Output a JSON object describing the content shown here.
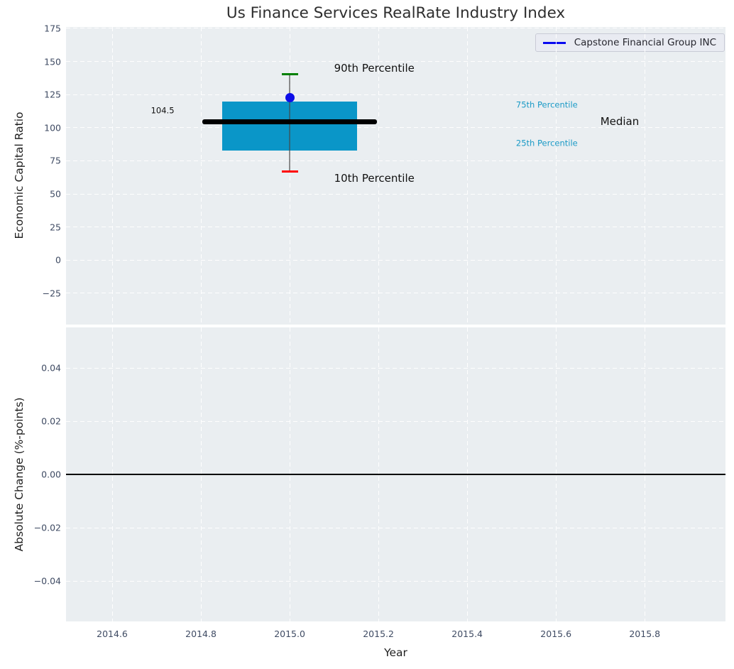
{
  "figure": {
    "title": "Us Finance Services RealRate Industry Index",
    "background": "#ffffff",
    "axes_background": "#eaeef1",
    "grid_color": "#ffffff",
    "tick_color": "#3f4b63",
    "label_color": "#1f1f1f"
  },
  "legend": {
    "label": "Capstone Financial Group INC",
    "line_color": "#0a0af0",
    "position": "upper right"
  },
  "chart_data": [
    {
      "type": "boxplot",
      "title": "Us Finance Services RealRate Industry Index",
      "xlabel": "Year",
      "ylabel": "Economic Capital Ratio",
      "xlim": [
        2014.496,
        2015.982
      ],
      "ylim": [
        -48.6,
        176.07
      ],
      "xticks": [
        2014.6,
        2014.8,
        2015.0,
        2015.2,
        2015.4,
        2015.6,
        2015.8
      ],
      "xticklabels": [
        "2014.6",
        "2014.8",
        "2015.0",
        "2015.2",
        "2015.4",
        "2015.6",
        "2015.8"
      ],
      "yticks": [
        175,
        150,
        125,
        100,
        75,
        50,
        25,
        0,
        -25
      ],
      "yticklabels": [
        "175",
        "150",
        "125",
        "100",
        "75",
        "50",
        "25",
        "0",
        "−25"
      ],
      "grid": "white-dashed",
      "legend_position": "upper right",
      "box": {
        "year": 2015.0,
        "p10": 67,
        "p25": 83,
        "median": 104.5,
        "p75": 120,
        "p90": 140.5,
        "box_halfwidth_years": 0.152,
        "median_halfwidth_years": 0.197,
        "cap_halfwidth_years": 0.0184,
        "box_color": "#0a96c8",
        "median_color": "#000000",
        "median_thickness_px": 7,
        "whisker_color": "rgba(70,70,70,0.6)",
        "p90_cap_color": "#008000",
        "p10_cap_color": "#ff0000"
      },
      "series": [
        {
          "name": "Capstone Financial Group INC",
          "marker": "circle",
          "color": "#0d0de8",
          "points": [
            {
              "x": 2015.0,
              "y": 122.5
            }
          ]
        }
      ],
      "annotations": [
        {
          "text": "90th Percentile",
          "x": 2015.1,
          "y": 145,
          "color": "#111111",
          "size": 15,
          "align": "left"
        },
        {
          "text": "10th Percentile",
          "x": 2015.1,
          "y": 62,
          "color": "#111111",
          "size": 15,
          "align": "left"
        },
        {
          "text": "104.5",
          "x": 2014.74,
          "y": 113,
          "color": "#111111",
          "size": 11.5,
          "align": "right"
        },
        {
          "text": "75th Percentile",
          "x": 2015.51,
          "y": 117,
          "color": "#1b9ac6",
          "size": 11.5,
          "align": "left"
        },
        {
          "text": "25th Percentile",
          "x": 2015.51,
          "y": 88,
          "color": "#1b9ac6",
          "size": 11.5,
          "align": "left"
        },
        {
          "text": "Median",
          "x": 2015.7,
          "y": 104.5,
          "color": "#111111",
          "size": 15,
          "align": "left"
        }
      ]
    },
    {
      "type": "line",
      "xlabel": "Year",
      "ylabel": "Absolute Change (%-points)",
      "xlim": [
        2014.496,
        2015.982
      ],
      "ylim": [
        -0.0552,
        0.0552
      ],
      "xticks": [
        2014.6,
        2014.8,
        2015.0,
        2015.2,
        2015.4,
        2015.6,
        2015.8
      ],
      "xticklabels": [
        "2014.6",
        "2014.8",
        "2015.0",
        "2015.2",
        "2015.4",
        "2015.6",
        "2015.8"
      ],
      "yticks": [
        0.04,
        0.02,
        0.0,
        -0.02,
        -0.04
      ],
      "yticklabels": [
        "0.04",
        "0.02",
        "0.00",
        "−0.02",
        "−0.04"
      ],
      "grid": "white-dashed",
      "zero_line": {
        "y": 0.0,
        "color": "#000000",
        "thickness_px": 1.8
      },
      "series": []
    }
  ]
}
